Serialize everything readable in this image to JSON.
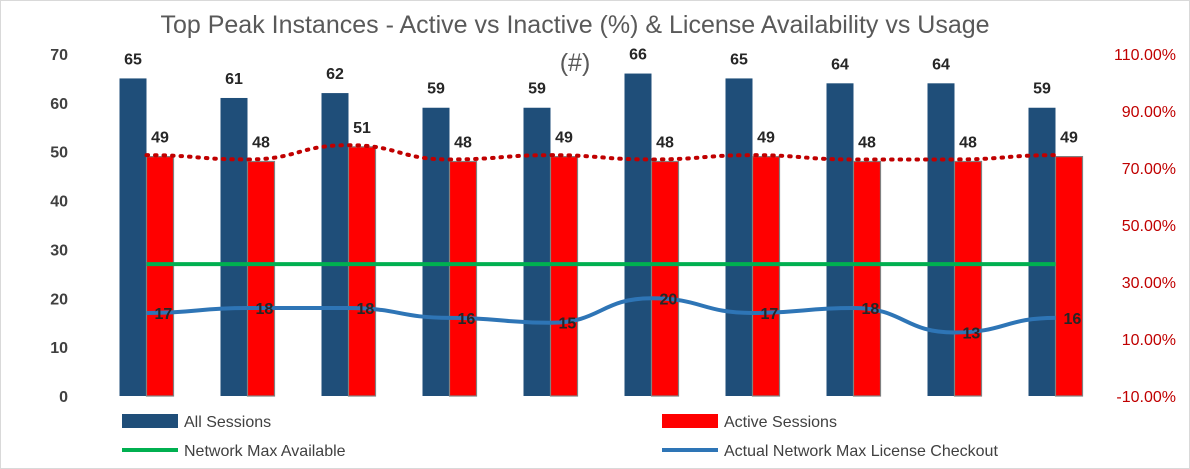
{
  "chart_data": {
    "type": "bar",
    "title": "Top Peak Instances - Active vs Inactive (%) & License Availability vs Usage",
    "subtitle": "(#)",
    "categories": [
      "",
      "",
      "",
      "",
      "",
      "",
      "",
      "",
      "",
      ""
    ],
    "series": [
      {
        "name": "All Sessions",
        "type": "bar",
        "axis": "left",
        "color": "#1f4e79",
        "values": [
          65,
          61,
          62,
          59,
          59,
          66,
          65,
          64,
          64,
          59
        ]
      },
      {
        "name": "Active Sessions",
        "type": "bar",
        "axis": "left",
        "color": "#ff0000",
        "values": [
          49,
          48,
          51,
          48,
          49,
          48,
          49,
          48,
          48,
          49
        ]
      },
      {
        "name": "Network Max Available",
        "type": "line",
        "axis": "left",
        "color": "#00b050",
        "values": [
          27,
          27,
          27,
          27,
          27,
          27,
          27,
          27,
          27,
          27
        ]
      },
      {
        "name": "Actual Network Max License Checkout",
        "type": "line",
        "axis": "left",
        "color": "#2e75b6",
        "values": [
          17,
          18,
          18,
          16,
          15,
          20,
          17,
          18,
          13,
          16
        ]
      },
      {
        "name": "",
        "type": "line",
        "style": "dotted",
        "axis": "right",
        "color": "#c00000",
        "values": [
          74.5,
          73,
          78,
          73,
          74.5,
          73,
          74.5,
          73,
          73,
          74.5
        ]
      }
    ],
    "y_left": {
      "min": 0,
      "max": 70,
      "ticks": [
        "0",
        "10",
        "20",
        "30",
        "40",
        "50",
        "60",
        "70"
      ]
    },
    "y_right": {
      "min": -10,
      "max": 110,
      "ticks": [
        "-10.00%",
        "10.00%",
        "30.00%",
        "50.00%",
        "70.00%",
        "90.00%",
        "110.00%"
      ],
      "tick_values": [
        -10,
        10,
        30,
        50,
        70,
        90,
        110
      ]
    },
    "grid": false,
    "legend_position": "bottom",
    "legend": [
      {
        "label": "All Sessions",
        "kind": "box",
        "color": "#1f4e79"
      },
      {
        "label": "Active Sessions",
        "kind": "box",
        "color": "#ff0000"
      },
      {
        "label": "Network Max Available",
        "kind": "line",
        "color": "#00b050"
      },
      {
        "label": "Actual Network Max License Checkout",
        "kind": "line",
        "color": "#2e75b6"
      }
    ]
  }
}
